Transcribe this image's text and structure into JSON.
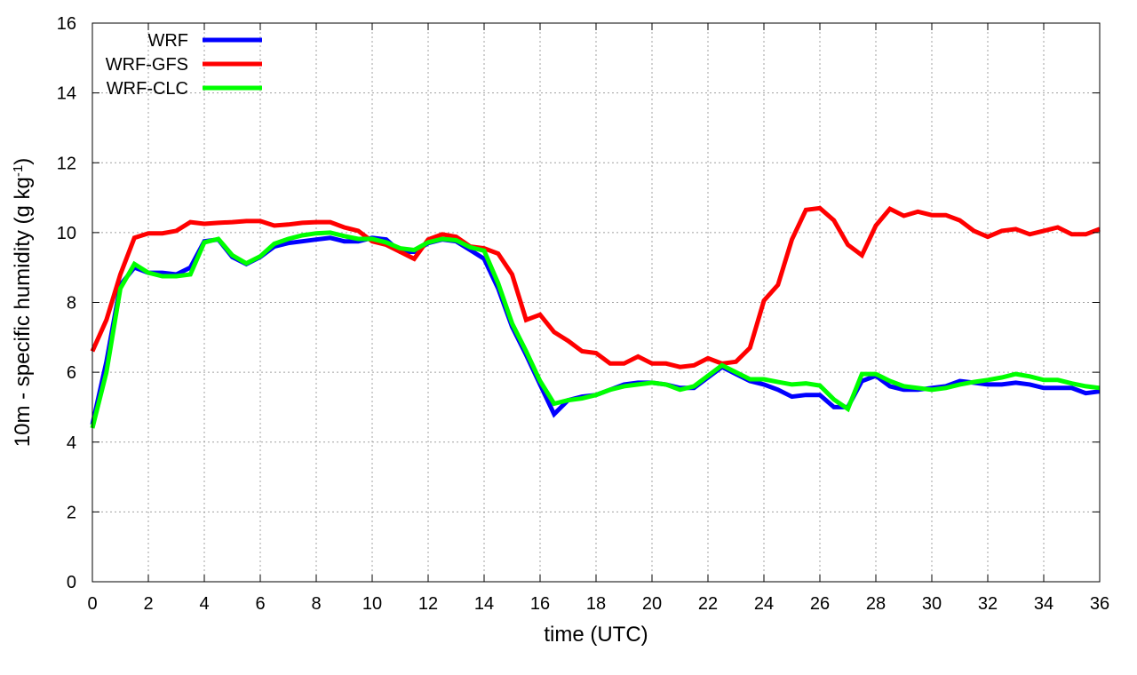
{
  "chart_data": {
    "type": "line",
    "title": "",
    "xlabel": "time (UTC)",
    "ylabel_main": "10m - specific humidity (g kg",
    "ylabel_exp": "-1",
    "ylabel_close": ")",
    "xlim": [
      0,
      36
    ],
    "ylim": [
      0,
      16
    ],
    "xticks": [
      0,
      2,
      4,
      6,
      8,
      10,
      12,
      14,
      16,
      18,
      20,
      22,
      24,
      26,
      28,
      30,
      32,
      34,
      36
    ],
    "yticks": [
      0,
      2,
      4,
      6,
      8,
      10,
      12,
      14,
      16
    ],
    "grid": true,
    "legend_position": "top-left",
    "x": [
      0,
      0.5,
      1,
      1.5,
      2,
      2.5,
      3,
      3.5,
      4,
      4.5,
      5,
      5.5,
      6,
      6.5,
      7,
      7.5,
      8,
      8.5,
      9,
      9.5,
      10,
      10.5,
      11,
      11.5,
      12,
      12.5,
      13,
      13.5,
      14,
      14.5,
      15,
      15.5,
      16,
      16.5,
      17,
      17.5,
      18,
      18.5,
      19,
      19.5,
      20,
      20.5,
      21,
      21.5,
      22,
      22.5,
      23,
      23.5,
      24,
      24.5,
      25,
      25.5,
      26,
      26.5,
      27,
      27.5,
      28,
      28.5,
      29,
      29.5,
      30,
      30.5,
      31,
      31.5,
      32,
      32.5,
      33,
      33.5,
      34,
      34.5,
      35,
      35.5,
      36
    ],
    "series": [
      {
        "name": "WRF",
        "color": "#0000ff",
        "values": [
          4.5,
          6.3,
          8.5,
          9.0,
          8.85,
          8.85,
          8.8,
          9.0,
          9.75,
          9.8,
          9.3,
          9.1,
          9.3,
          9.6,
          9.7,
          9.75,
          9.8,
          9.85,
          9.75,
          9.75,
          9.85,
          9.8,
          9.45,
          9.45,
          9.7,
          9.8,
          9.75,
          9.5,
          9.25,
          8.4,
          7.3,
          6.5,
          5.65,
          4.8,
          5.2,
          5.3,
          5.35,
          5.5,
          5.65,
          5.7,
          5.7,
          5.65,
          5.55,
          5.55,
          5.85,
          6.15,
          5.95,
          5.75,
          5.65,
          5.5,
          5.3,
          5.35,
          5.35,
          5.0,
          5.0,
          5.75,
          5.9,
          5.6,
          5.5,
          5.5,
          5.55,
          5.6,
          5.75,
          5.7,
          5.65,
          5.65,
          5.7,
          5.65,
          5.55,
          5.55,
          5.55,
          5.4,
          5.45
        ]
      },
      {
        "name": "WRF-GFS",
        "color": "#ff0000",
        "values": [
          6.6,
          7.5,
          8.8,
          9.85,
          9.98,
          9.98,
          10.05,
          10.3,
          10.25,
          10.28,
          10.3,
          10.33,
          10.33,
          10.2,
          10.23,
          10.28,
          10.3,
          10.3,
          10.15,
          10.05,
          9.75,
          9.65,
          9.45,
          9.25,
          9.8,
          9.95,
          9.88,
          9.6,
          9.55,
          9.4,
          8.8,
          7.5,
          7.65,
          7.15,
          6.9,
          6.6,
          6.55,
          6.25,
          6.25,
          6.45,
          6.25,
          6.25,
          6.15,
          6.2,
          6.4,
          6.25,
          6.3,
          6.7,
          8.05,
          8.5,
          9.8,
          10.65,
          10.7,
          10.35,
          9.65,
          9.35,
          10.2,
          10.68,
          10.48,
          10.6,
          10.5,
          10.5,
          10.35,
          10.05,
          9.88,
          10.05,
          10.1,
          9.95,
          10.05,
          10.15,
          9.95,
          9.95,
          10.1
        ]
      },
      {
        "name": "WRF-CLC",
        "color": "#00ff00",
        "values": [
          4.4,
          6.0,
          8.4,
          9.1,
          8.85,
          8.75,
          8.75,
          8.8,
          9.72,
          9.82,
          9.35,
          9.12,
          9.32,
          9.68,
          9.82,
          9.92,
          9.98,
          10.0,
          9.9,
          9.82,
          9.82,
          9.72,
          9.55,
          9.5,
          9.72,
          9.82,
          9.78,
          9.58,
          9.48,
          8.55,
          7.4,
          6.6,
          5.75,
          5.1,
          5.2,
          5.25,
          5.35,
          5.5,
          5.6,
          5.65,
          5.7,
          5.65,
          5.5,
          5.6,
          5.9,
          6.2,
          6.0,
          5.8,
          5.8,
          5.72,
          5.65,
          5.68,
          5.62,
          5.22,
          4.95,
          5.95,
          5.95,
          5.75,
          5.6,
          5.55,
          5.5,
          5.55,
          5.65,
          5.72,
          5.78,
          5.85,
          5.95,
          5.88,
          5.78,
          5.78,
          5.68,
          5.6,
          5.55
        ]
      }
    ]
  }
}
